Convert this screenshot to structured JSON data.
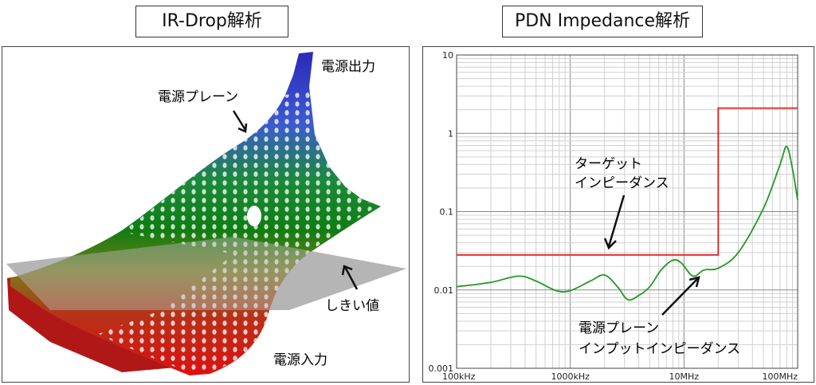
{
  "left": {
    "title": "IR-Drop解析",
    "labels": {
      "output": "電源出力",
      "plane": "電源プレーン",
      "threshold": "しきい値",
      "input": "電源入力"
    }
  },
  "right": {
    "title": "PDN Impedance解析",
    "labels": {
      "target_line1": "ターゲット",
      "target_line2": "インピーダンス",
      "plane_line1": "電源プレーン",
      "plane_line2": "インプットインピーダンス"
    }
  },
  "chart_data": {
    "type": "line",
    "xscale": "log",
    "yscale": "log",
    "xlim": [
      100000,
      100000000
    ],
    "ylim": [
      0.001,
      10
    ],
    "x_tick_labels": [
      "100kHz",
      "1000kHz",
      "10MHz",
      "100MHz"
    ],
    "y_tick_labels": [
      "0.001",
      "0.01",
      "0.1",
      "1",
      "10"
    ],
    "grid": true,
    "series": [
      {
        "color": "#e02020",
        "points": [
          [
            100000,
            0.028
          ],
          [
            20000000,
            0.028
          ],
          [
            20000000,
            2.1
          ],
          [
            100000000,
            2.1
          ]
        ]
      },
      {
        "color": "#229922",
        "points": [
          [
            100000,
            0.011
          ],
          [
            200000,
            0.0125
          ],
          [
            350000,
            0.015
          ],
          [
            500000,
            0.013
          ],
          [
            750000,
            0.0098
          ],
          [
            1000000,
            0.0098
          ],
          [
            1500000,
            0.013
          ],
          [
            2000000,
            0.0155
          ],
          [
            2600000,
            0.011
          ],
          [
            3200000,
            0.0075
          ],
          [
            4000000,
            0.0085
          ],
          [
            5000000,
            0.011
          ],
          [
            6300000,
            0.018
          ],
          [
            8000000,
            0.024
          ],
          [
            9500000,
            0.022
          ],
          [
            12000000,
            0.015
          ],
          [
            15000000,
            0.018
          ],
          [
            20000000,
            0.019
          ],
          [
            30000000,
            0.03
          ],
          [
            50000000,
            0.11
          ],
          [
            70000000,
            0.4
          ],
          [
            80000000,
            0.68
          ],
          [
            90000000,
            0.35
          ],
          [
            100000000,
            0.14
          ]
        ]
      }
    ]
  }
}
